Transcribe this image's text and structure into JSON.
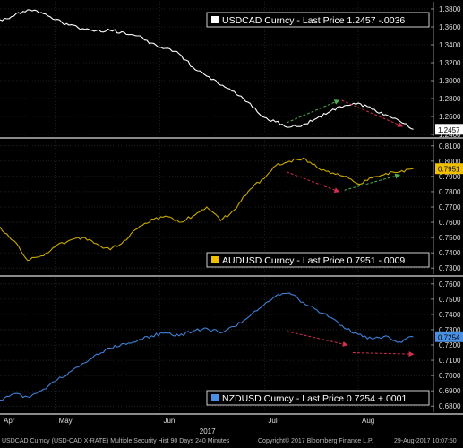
{
  "chart_data": [
    {
      "type": "line",
      "legend": "USDCAD Curncy - Last Price 1.2457 -.0036",
      "last_value_label": "1.2457",
      "yticks": [
        "1.3800",
        "1.3600",
        "1.3400",
        "1.3200",
        "1.3000",
        "1.2800",
        "1.2600",
        "1.2400"
      ],
      "ylim": [
        1.238,
        1.388
      ],
      "series_color": "#ffffff",
      "badge_color": "#ffffff",
      "x": [
        0,
        5,
        10,
        15,
        20,
        25,
        30,
        35,
        40,
        45,
        50,
        55,
        60,
        65,
        70,
        75,
        80,
        85,
        90,
        95,
        100,
        105,
        110,
        115,
        120,
        125,
        130,
        135,
        140,
        145,
        150
      ],
      "y": [
        1.368,
        1.372,
        1.379,
        1.376,
        1.368,
        1.362,
        1.358,
        1.356,
        1.356,
        1.354,
        1.35,
        1.342,
        1.336,
        1.33,
        1.315,
        1.305,
        1.295,
        1.288,
        1.276,
        1.26,
        1.254,
        1.248,
        1.251,
        1.258,
        1.266,
        1.272,
        1.275,
        1.268,
        1.262,
        1.255,
        1.2457
      ],
      "arrows": [
        {
          "from": [
            104,
            1.253
          ],
          "to": [
            123,
            1.278
          ],
          "color": "#4caf50"
        },
        {
          "from": [
            124,
            1.278
          ],
          "to": [
            146,
            1.249
          ],
          "color": "#d32f4f"
        }
      ]
    },
    {
      "type": "line",
      "legend": "AUDUSD Curncy - Last Price 0.7951 -.0009",
      "last_value_label": "0.7951",
      "yticks": [
        "0.8100",
        "0.8000",
        "0.7900",
        "0.7800",
        "0.7700",
        "0.7600",
        "0.7500",
        "0.7400",
        "0.7300"
      ],
      "ylim": [
        0.726,
        0.814
      ],
      "series_color": "#c8a800",
      "badge_color": "#f0c000",
      "x": [
        0,
        5,
        10,
        15,
        20,
        25,
        30,
        35,
        40,
        45,
        50,
        55,
        60,
        65,
        70,
        75,
        80,
        85,
        90,
        95,
        100,
        105,
        110,
        115,
        120,
        125,
        130,
        135,
        140,
        145,
        150
      ],
      "y": [
        0.757,
        0.748,
        0.735,
        0.738,
        0.744,
        0.748,
        0.75,
        0.746,
        0.742,
        0.748,
        0.756,
        0.762,
        0.764,
        0.76,
        0.764,
        0.77,
        0.761,
        0.768,
        0.78,
        0.788,
        0.797,
        0.8,
        0.802,
        0.796,
        0.792,
        0.79,
        0.785,
        0.789,
        0.792,
        0.793,
        0.7951
      ],
      "arrows": [
        {
          "from": [
            104,
            0.793
          ],
          "to": [
            123,
            0.78
          ],
          "color": "#d32f4f"
        },
        {
          "from": [
            125,
            0.781
          ],
          "to": [
            145,
            0.791
          ],
          "color": "#4caf50"
        }
      ]
    },
    {
      "type": "line",
      "legend": "NZDUSD Curncy - Last Price 0.7254 +.0001",
      "last_value_label": "0.7254",
      "yticks": [
        "0.7600",
        "0.7500",
        "0.7400",
        "0.7300",
        "0.7200",
        "0.7100",
        "0.7000",
        "0.6900",
        "0.6800"
      ],
      "ylim": [
        0.676,
        0.764
      ],
      "series_color": "#3f7fd6",
      "badge_color": "#4a90e2",
      "x": [
        0,
        5,
        10,
        15,
        20,
        25,
        30,
        35,
        40,
        45,
        50,
        55,
        60,
        65,
        70,
        75,
        80,
        85,
        90,
        95,
        100,
        105,
        110,
        115,
        120,
        125,
        130,
        135,
        140,
        145,
        150
      ],
      "y": [
        0.684,
        0.688,
        0.686,
        0.69,
        0.696,
        0.702,
        0.708,
        0.714,
        0.718,
        0.721,
        0.723,
        0.726,
        0.728,
        0.726,
        0.729,
        0.731,
        0.728,
        0.732,
        0.738,
        0.745,
        0.752,
        0.754,
        0.748,
        0.743,
        0.738,
        0.731,
        0.727,
        0.724,
        0.726,
        0.722,
        0.7254
      ],
      "arrows": [
        {
          "from": [
            104,
            0.729
          ],
          "to": [
            126,
            0.72
          ],
          "color": "#d32f4f"
        },
        {
          "from": [
            128,
            0.715
          ],
          "to": [
            150,
            0.714
          ],
          "color": "#d32f4f"
        }
      ]
    }
  ],
  "x_axis": {
    "month_labels": [
      {
        "label": "Apr",
        "x": 0
      },
      {
        "label": "May",
        "x": 20
      },
      {
        "label": "Jun",
        "x": 58
      },
      {
        "label": "Jul",
        "x": 96
      },
      {
        "label": "Aug",
        "x": 130
      }
    ],
    "year_label": "2017",
    "year_x": 75,
    "xlim": [
      0,
      156
    ]
  },
  "footer": {
    "left": "USDCAD Curncy (USD-CAD X-RATE) Multiple Security Hist  90 Days 240 Minutes",
    "middle": "Copyright© 2017 Bloomberg Finance L.P.",
    "right": "29-Aug-2017 10:07:50"
  }
}
